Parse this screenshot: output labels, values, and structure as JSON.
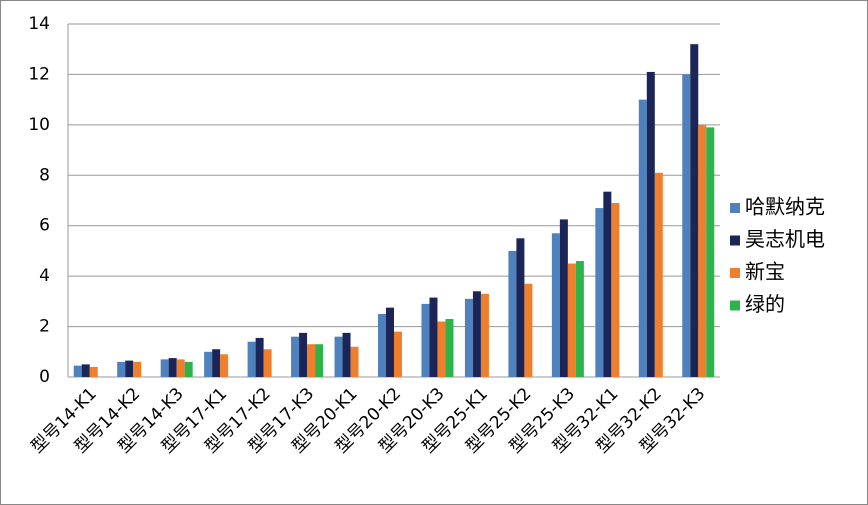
{
  "chart_data": {
    "type": "bar",
    "categories": [
      "型号14-K1",
      "型号14-K2",
      "型号14-K3",
      "型号17-K1",
      "型号17-K2",
      "型号17-K3",
      "型号20-K1",
      "型号20-K2",
      "型号20-K3",
      "型号25-K1",
      "型号25-K2",
      "型号25-K3",
      "型号32-K1",
      "型号32-K2",
      "型号32-K3"
    ],
    "series": [
      {
        "name": "哈默纳克",
        "color": "#4f81bd",
        "values": [
          0.45,
          0.6,
          0.7,
          1.0,
          1.4,
          1.6,
          1.6,
          2.5,
          2.9,
          3.1,
          5.0,
          5.7,
          6.7,
          11.0,
          12.0
        ]
      },
      {
        "name": "昊志机电",
        "color": "#1b2557",
        "values": [
          0.5,
          0.65,
          0.75,
          1.1,
          1.55,
          1.75,
          1.75,
          2.75,
          3.15,
          3.4,
          5.5,
          6.25,
          7.35,
          12.1,
          13.2
        ]
      },
      {
        "name": "新宝",
        "color": "#f07f2d",
        "values": [
          0.4,
          0.6,
          0.7,
          0.9,
          1.1,
          1.3,
          1.2,
          1.8,
          2.2,
          3.3,
          3.7,
          4.5,
          6.9,
          8.1,
          10.0
        ]
      },
      {
        "name": "绿的",
        "color": "#2db34a",
        "values": [
          null,
          null,
          0.6,
          null,
          null,
          1.3,
          null,
          null,
          2.3,
          null,
          null,
          4.6,
          null,
          null,
          9.9
        ]
      }
    ],
    "ylim": [
      0,
      14
    ],
    "yticks": [
      0,
      2,
      4,
      6,
      8,
      10,
      12,
      14
    ],
    "grid": true,
    "legend": "right"
  }
}
